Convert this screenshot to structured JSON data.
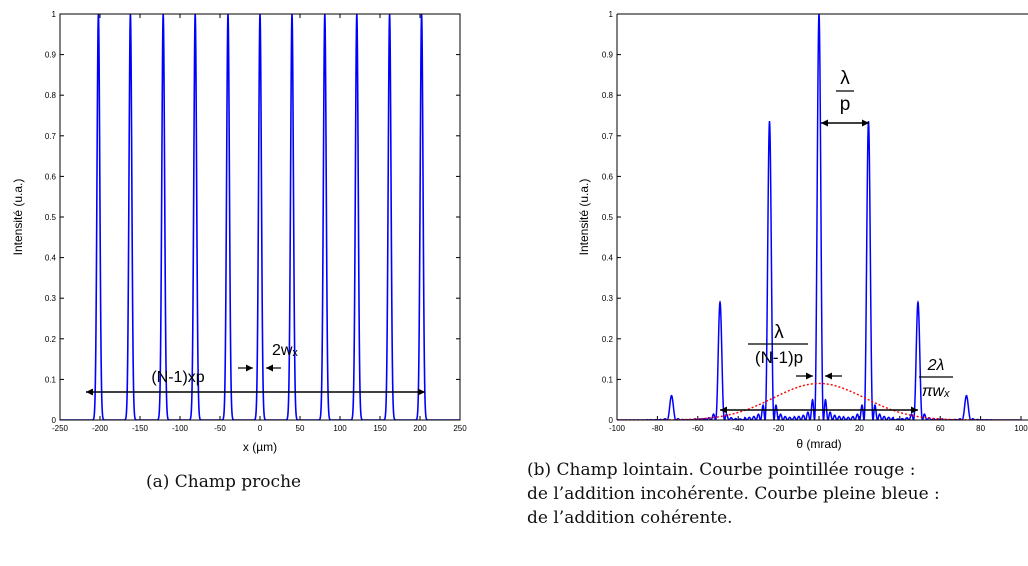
{
  "chart_data": [
    {
      "type": "line",
      "ylabel": "Intensité (u.a.)",
      "xlabel": "x (µm)",
      "xlim": [
        -250,
        250
      ],
      "ylim": [
        0,
        1
      ],
      "xticks": [
        "-250",
        "-200",
        "-150",
        "-100",
        "-50",
        "0",
        "50",
        "100",
        "150",
        "200",
        "250"
      ],
      "yticks": [
        "0",
        "0.1",
        "0.2",
        "0.3",
        "0.4",
        "0.5",
        "0.6",
        "0.7",
        "0.8",
        "0.9",
        "1"
      ],
      "grid": false,
      "series": [
        {
          "color": "#0000ff",
          "peak_centers": [
            -202,
            -162,
            -121,
            -81,
            -40,
            0,
            40,
            81,
            121,
            162,
            202
          ],
          "peak_values": [
            1,
            1,
            1,
            1,
            1,
            1,
            1,
            1,
            1,
            1,
            1
          ],
          "waist_wx": 3.5
        }
      ],
      "annotations": [
        {
          "text": "(N-1)xp",
          "span": [
            -202,
            202
          ],
          "y": 0.07
        },
        {
          "text": "2wₓ",
          "span": [
            -3.5,
            3.5
          ],
          "y": 0.13
        }
      ],
      "caption": "(a)  Champ proche"
    },
    {
      "type": "line",
      "ylabel": "Intensité (u.a.)",
      "xlabel": "θ (mrad)",
      "xlim": [
        -100,
        100
      ],
      "ylim": [
        0,
        1
      ],
      "xticks": [
        "-100",
        "-80",
        "-60",
        "-40",
        "-20",
        "0",
        "20",
        "40",
        "60",
        "80",
        "100"
      ],
      "yticks": [
        "0",
        "0.1",
        "0.2",
        "0.3",
        "0.4",
        "0.5",
        "0.6",
        "0.7",
        "0.8",
        "0.9",
        "1"
      ],
      "grid": false,
      "series": [
        {
          "style": "solid",
          "color": "#0000ff",
          "peaks": [
            {
              "x": -73,
              "y": 0.06
            },
            {
              "x": -49,
              "y": 0.29
            },
            {
              "x": -24.5,
              "y": 0.735
            },
            {
              "x": 0,
              "y": 1.0
            },
            {
              "x": 24.5,
              "y": 0.735
            },
            {
              "x": 49,
              "y": 0.29
            },
            {
              "x": 73,
              "y": 0.06
            }
          ]
        },
        {
          "style": "dotted",
          "color": "#ff0000",
          "envelope_peak": 0.09,
          "envelope_half_width": 45
        }
      ],
      "annotations": [
        {
          "numerator": "λ",
          "denominator": "p",
          "span": [
            0,
            24.5
          ],
          "y": 0.735
        },
        {
          "numerator": "λ",
          "denominator": "(N-1)p",
          "span": [
            -1.5,
            1.5
          ],
          "y": 0.13
        },
        {
          "numerator": "2λ",
          "denominator": "πwₓ",
          "span": [
            -46,
            46
          ],
          "y": 0.025
        }
      ],
      "caption_lines": [
        "(b)  Champ lointain. Courbe pointillée rouge :",
        "de l’addition incohérente. Courbe pleine bleue :",
        "de l’addition cohérente."
      ]
    }
  ]
}
